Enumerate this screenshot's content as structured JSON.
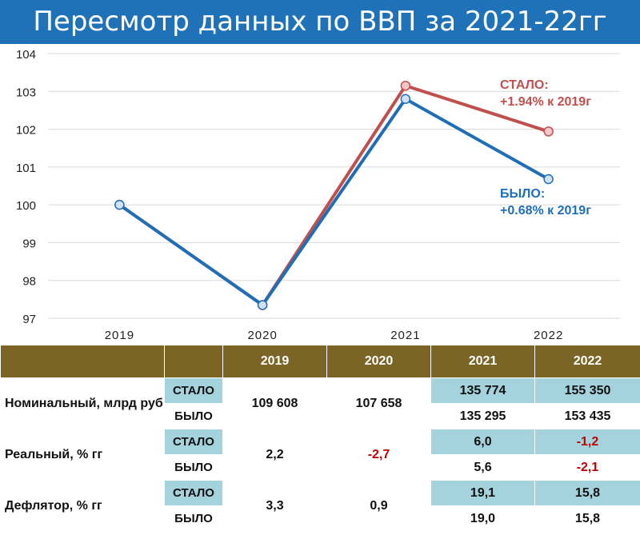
{
  "header": {
    "title": "Пересмотр данных по ВВП за 2021-22гг"
  },
  "chart_data": {
    "type": "line",
    "title": "",
    "xlabel": "",
    "ylabel": "",
    "categories": [
      "2019",
      "2020",
      "2021",
      "2022"
    ],
    "ylim": [
      97,
      104
    ],
    "yticks": [
      97,
      98,
      99,
      100,
      101,
      102,
      103,
      104
    ],
    "grid": true,
    "series": [
      {
        "name": "СТАЛО",
        "color": "#c0504d",
        "values": [
          100,
          97.35,
          103.15,
          101.94
        ]
      },
      {
        "name": "БЫЛО",
        "color": "#1f6fb8",
        "values": [
          100,
          97.35,
          102.8,
          100.68
        ]
      }
    ],
    "annotations": [
      {
        "series": "СТАЛО",
        "lines": [
          "СТАЛО:",
          "+1.94% к 2019г"
        ],
        "color": "#c0504d"
      },
      {
        "series": "БЫЛО",
        "lines": [
          "БЫЛО:",
          "+0.68% к 2019г"
        ],
        "color": "#1f6fb8"
      }
    ]
  },
  "table": {
    "years": [
      "2019",
      "2020",
      "2021",
      "2022"
    ],
    "rows": [
      {
        "label": "Номинальный, млрд руб",
        "stalo_label": "СТАЛО",
        "bylo_label": "БЫЛО",
        "v2019": "109 608",
        "v2020": "107 658",
        "stalo": [
          "135 774",
          "155 350"
        ],
        "bylo": [
          "135 295",
          "153 435"
        ]
      },
      {
        "label": "Реальный, % гг",
        "stalo_label": "СТАЛО",
        "bylo_label": "БЫЛО",
        "v2019": "2,2",
        "v2020": "-2,7",
        "stalo": [
          "6,0",
          "-1,2"
        ],
        "bylo": [
          "5,6",
          "-2,1"
        ]
      },
      {
        "label": "Дефлятор, % гг",
        "stalo_label": "СТАЛО",
        "bylo_label": "БЫЛО",
        "v2019": "3,3",
        "v2020": "0,9",
        "stalo": [
          "19,1",
          "15,8"
        ],
        "bylo": [
          "19,0",
          "15,8"
        ]
      }
    ]
  }
}
